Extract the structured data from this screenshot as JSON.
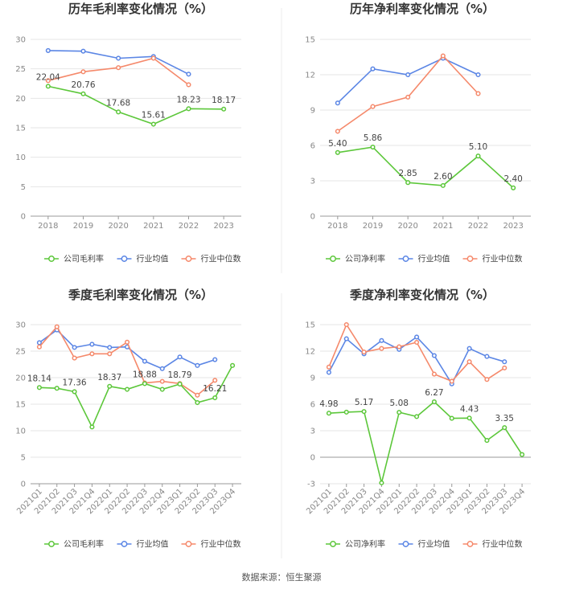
{
  "source": "数据来源：恒生聚源",
  "colors": {
    "company": "#5cc73a",
    "avg": "#5b86e5",
    "median": "#f5896b",
    "grid": "#e6e6e6",
    "axis": "#999999"
  },
  "chart_data": [
    {
      "type": "line",
      "title": "历年毛利率变化情况（%）",
      "categories": [
        "2018",
        "2019",
        "2020",
        "2021",
        "2022",
        "2023"
      ],
      "ylim": [
        0,
        30
      ],
      "yticks": [
        0,
        5,
        10,
        15,
        20,
        25,
        30
      ],
      "rotate_labels": false,
      "series": [
        {
          "name": "公司毛利率",
          "values": [
            22.04,
            20.76,
            17.68,
            15.61,
            18.23,
            18.17
          ],
          "labels": [
            "22.04",
            "20.76",
            "17.68",
            "15.61",
            "18.23",
            "18.17"
          ]
        },
        {
          "name": "行业均值",
          "values": [
            28.1,
            28.0,
            26.8,
            27.1,
            24.1,
            null
          ]
        },
        {
          "name": "行业中位数",
          "values": [
            23.0,
            24.5,
            25.2,
            26.8,
            22.3,
            null
          ]
        }
      ]
    },
    {
      "type": "line",
      "title": "历年净利率变化情况（%）",
      "categories": [
        "2018",
        "2019",
        "2020",
        "2021",
        "2022",
        "2023"
      ],
      "ylim": [
        0,
        15
      ],
      "yticks": [
        0,
        3,
        6,
        9,
        12,
        15
      ],
      "rotate_labels": false,
      "series": [
        {
          "name": "公司净利率",
          "values": [
            5.4,
            5.86,
            2.85,
            2.6,
            5.1,
            2.4
          ],
          "labels": [
            "5.40",
            "5.86",
            "2.85",
            "2.60",
            "5.10",
            "2.40"
          ]
        },
        {
          "name": "行业均值",
          "values": [
            9.6,
            12.5,
            12.0,
            13.4,
            12.0,
            null
          ]
        },
        {
          "name": "行业中位数",
          "values": [
            7.2,
            9.3,
            10.1,
            13.6,
            10.4,
            null
          ]
        }
      ]
    },
    {
      "type": "line",
      "title": "季度毛利率变化情况（%）",
      "categories": [
        "2021Q1",
        "2021Q2",
        "2021Q3",
        "2021Q4",
        "2022Q1",
        "2022Q2",
        "2022Q3",
        "2022Q4",
        "2023Q1",
        "2023Q2",
        "2023Q3",
        "2023Q4"
      ],
      "ylim": [
        0,
        30
      ],
      "yticks": [
        0,
        5,
        10,
        15,
        20,
        25,
        30
      ],
      "rotate_labels": true,
      "series": [
        {
          "name": "公司毛利率",
          "values": [
            18.14,
            18.0,
            17.36,
            10.7,
            18.37,
            17.8,
            18.88,
            17.8,
            18.79,
            15.3,
            16.21,
            22.3
          ],
          "labels": [
            "18.14",
            "",
            "17.36",
            "",
            "18.37",
            "",
            "18.88",
            "",
            "18.79",
            "",
            "16.21",
            ""
          ]
        },
        {
          "name": "行业均值",
          "values": [
            26.6,
            29.0,
            25.7,
            26.3,
            25.7,
            25.8,
            23.1,
            21.7,
            23.9,
            22.3,
            23.4,
            null
          ]
        },
        {
          "name": "行业中位数",
          "values": [
            25.8,
            29.6,
            23.7,
            24.5,
            24.5,
            26.7,
            19.0,
            19.3,
            18.9,
            16.7,
            19.5,
            null
          ]
        }
      ]
    },
    {
      "type": "line",
      "title": "季度净利率变化情况（%）",
      "categories": [
        "2021Q1",
        "2021Q2",
        "2021Q3",
        "2021Q4",
        "2022Q1",
        "2022Q2",
        "2022Q3",
        "2022Q4",
        "2023Q1",
        "2023Q2",
        "2023Q3",
        "2023Q4"
      ],
      "ylim": [
        -3,
        15
      ],
      "yticks": [
        -3,
        0,
        3,
        6,
        9,
        12,
        15
      ],
      "rotate_labels": true,
      "series": [
        {
          "name": "公司净利率",
          "values": [
            4.98,
            5.1,
            5.17,
            -2.9,
            5.08,
            4.6,
            6.27,
            4.4,
            4.43,
            1.9,
            3.35,
            0.3
          ],
          "labels": [
            "4.98",
            "",
            "5.17",
            "",
            "5.08",
            "",
            "6.27",
            "",
            "4.43",
            "",
            "3.35",
            ""
          ]
        },
        {
          "name": "行业均值",
          "values": [
            9.6,
            13.4,
            11.7,
            13.2,
            12.2,
            13.6,
            11.5,
            8.3,
            12.3,
            11.4,
            10.8,
            null
          ]
        },
        {
          "name": "行业中位数",
          "values": [
            10.2,
            15.0,
            11.9,
            12.3,
            12.5,
            13.0,
            9.4,
            8.6,
            10.8,
            8.8,
            10.1,
            null
          ]
        }
      ]
    }
  ]
}
